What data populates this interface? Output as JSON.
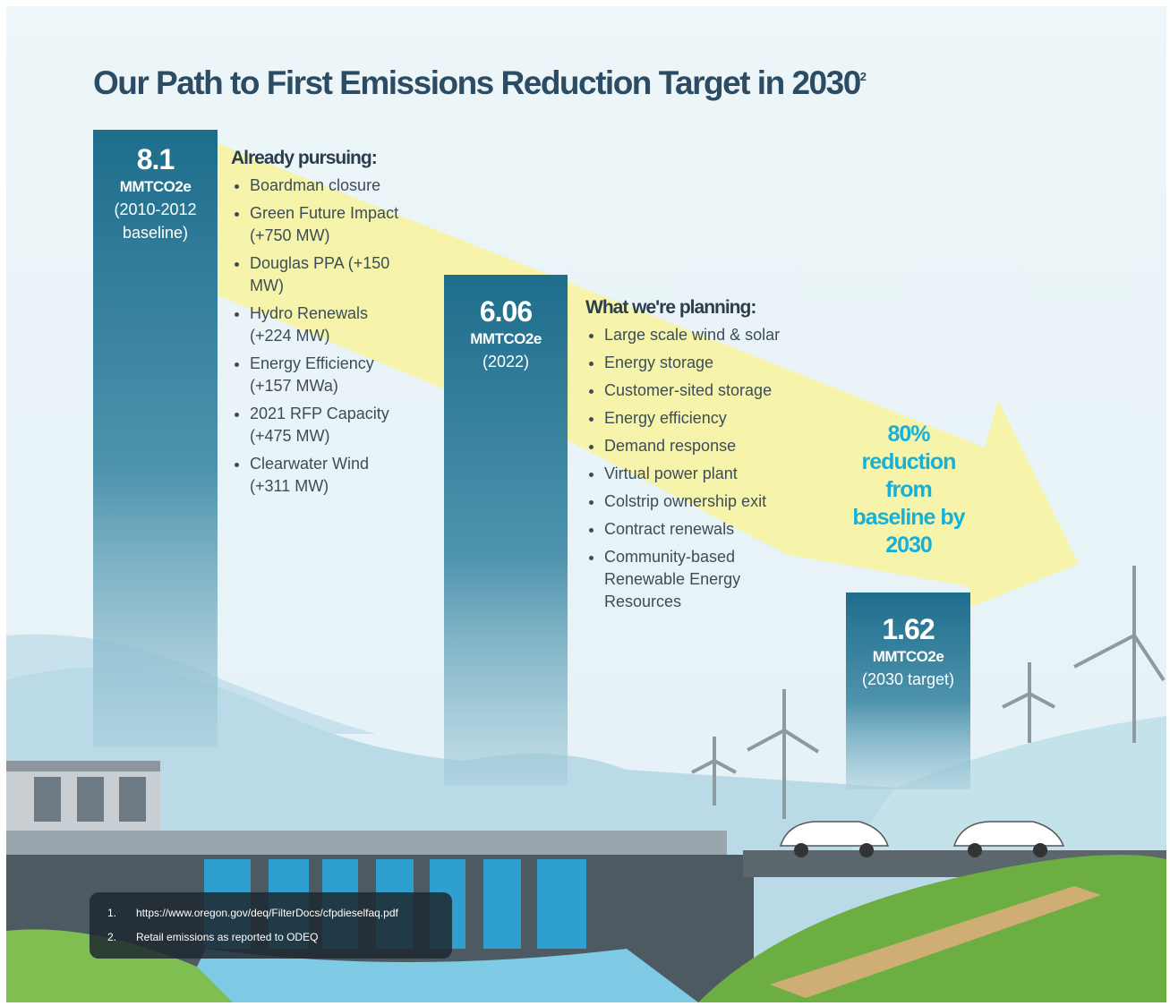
{
  "title": "Our Path to First Emissions Reduction Target in 2030",
  "title_superscript": "2",
  "columns": [
    {
      "value": "8.1",
      "unit": "MMTCO2e",
      "period": "(2010-2012 baseline)"
    },
    {
      "value": "6.06",
      "unit": "MMTCO2e",
      "period": "(2022)"
    },
    {
      "value": "1.62",
      "unit": "MMTCO2e",
      "period": "(2030 target)"
    }
  ],
  "already_pursuing": {
    "heading": "Already pursuing:",
    "items": [
      "Boardman closure",
      "Green Future Impact (+750 MW)",
      "Douglas PPA (+150 MW)",
      "Hydro Renewals (+224 MW)",
      "Energy Efficiency (+157 MWa)",
      "2021 RFP Capacity (+475 MW)",
      "Clearwater Wind (+311 MW)"
    ]
  },
  "planning": {
    "heading": "What we're planning:",
    "items": [
      "Large scale wind & solar",
      "Energy storage",
      "Customer-sited storage",
      "Energy efficiency",
      "Demand response",
      "Virtual power plant",
      "Colstrip ownership exit",
      "Contract renewals",
      "Community-based Renewable Energy Resources"
    ]
  },
  "callout": "80% reduction from baseline by 2030",
  "footnotes": [
    {
      "number": "1.",
      "text": "https://www.oregon.gov/deq/FilterDocs/cfpdieselfaq.pdf"
    },
    {
      "number": "2.",
      "text": "Retail emissions as reported to ODEQ"
    }
  ]
}
